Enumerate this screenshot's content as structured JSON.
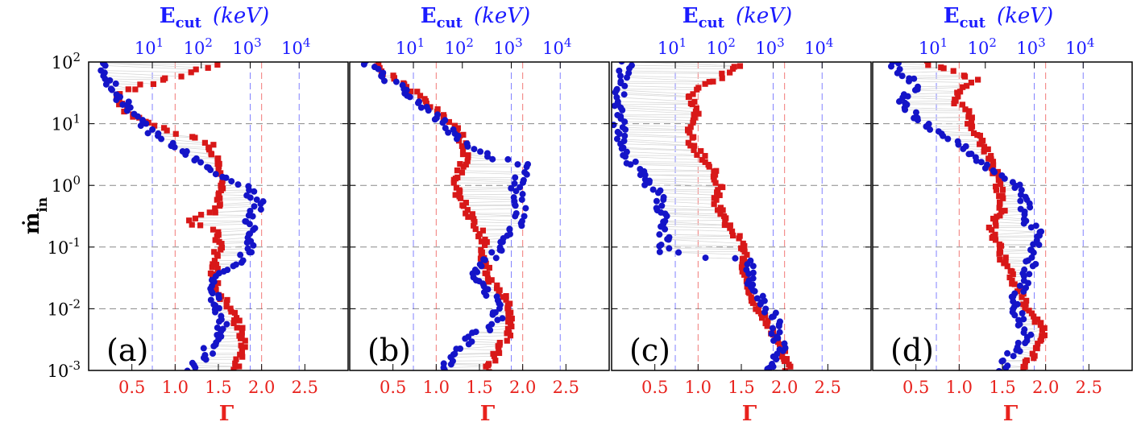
{
  "colors": {
    "gamma": "#d81818",
    "ecut": "#1414c8",
    "gamma_axis": "#e8221d",
    "ecut_axis": "#1a1aff",
    "grid_gray": "#888888",
    "connector": "#d8d8d8"
  },
  "labels": {
    "y_axis_main": "ṁ",
    "y_axis_sub": "in",
    "x_bottom": "Γ",
    "x_top_main": "E",
    "x_top_sub": "cut",
    "x_top_unit": "(keV)"
  },
  "chart_data": [
    {
      "type": "scatter",
      "panel_label": "(a)",
      "y_scale": "log",
      "ylim": [
        0.001,
        100
      ],
      "y_ticks": [
        {
          "exp": "-3"
        },
        {
          "exp": "-2"
        },
        {
          "exp": "-1"
        },
        {
          "exp": "0"
        },
        {
          "exp": "1"
        },
        {
          "exp": "2"
        }
      ],
      "x_bottom": {
        "label": "Γ",
        "xlim": [
          0.0,
          3.0
        ],
        "ticks": [
          "0.5",
          "1.0",
          "1.5",
          "2.0",
          "2.5"
        ],
        "gridlines": [
          1.0,
          2.0
        ]
      },
      "x_top": {
        "label": "Ecut (keV)",
        "scale": "log",
        "xlim": [
          0.5,
          100000
        ],
        "ticks": [
          {
            "exp": "1"
          },
          {
            "exp": "2"
          },
          {
            "exp": "3"
          },
          {
            "exp": "4"
          }
        ],
        "gridlines": [
          10,
          1000,
          10000
        ]
      },
      "grid_y": [
        0.01,
        0.1,
        1,
        10
      ],
      "series": [
        {
          "axis": "x_bottom",
          "marker": "square",
          "trend": [
            [
              1.7,
              0.001
            ],
            [
              1.75,
              0.0016
            ],
            [
              1.8,
              0.0025
            ],
            [
              1.75,
              0.004
            ],
            [
              1.7,
              0.007
            ],
            [
              1.6,
              0.012
            ],
            [
              1.5,
              0.02
            ],
            [
              1.45,
              0.035
            ],
            [
              1.45,
              0.06
            ],
            [
              1.5,
              0.1
            ],
            [
              1.5,
              0.18
            ],
            [
              1.1,
              0.25
            ],
            [
              1.45,
              0.35
            ],
            [
              1.5,
              0.6
            ],
            [
              1.55,
              1
            ],
            [
              1.5,
              1.7
            ],
            [
              1.45,
              3
            ],
            [
              1.4,
              5
            ],
            [
              1.0,
              7
            ],
            [
              0.7,
              10
            ],
            [
              0.45,
              15
            ],
            [
              0.3,
              30
            ],
            [
              1.0,
              60
            ],
            [
              1.5,
              90
            ]
          ]
        },
        {
          "axis": "x_top",
          "marker": "circle",
          "trend": [
            [
              60,
              0.001
            ],
            [
              100,
              0.0015
            ],
            [
              200,
              0.003
            ],
            [
              300,
              0.006
            ],
            [
              200,
              0.012
            ],
            [
              200,
              0.03
            ],
            [
              500,
              0.05
            ],
            [
              1000,
              0.1
            ],
            [
              1000,
              0.25
            ],
            [
              1500,
              0.5
            ],
            [
              800,
              1
            ],
            [
              250,
              1.5
            ],
            [
              80,
              2.5
            ],
            [
              20,
              5
            ],
            [
              6,
              10
            ],
            [
              3,
              20
            ],
            [
              1.5,
              40
            ],
            [
              1,
              70
            ],
            [
              1.2,
              100
            ]
          ]
        }
      ]
    },
    {
      "type": "scatter",
      "panel_label": "(b)",
      "y_scale": "log",
      "ylim": [
        0.001,
        100
      ],
      "x_bottom": {
        "label": "Γ",
        "xlim": [
          0.0,
          3.0
        ],
        "ticks": [
          "0.5",
          "1.0",
          "1.5",
          "2.0",
          "2.5"
        ],
        "gridlines": [
          1.0,
          2.0
        ]
      },
      "x_top": {
        "label": "Ecut (keV)",
        "scale": "log",
        "xlim": [
          0.5,
          100000
        ],
        "ticks": [
          {
            "exp": "1"
          },
          {
            "exp": "2"
          },
          {
            "exp": "3"
          },
          {
            "exp": "4"
          }
        ],
        "gridlines": [
          10,
          1000,
          10000
        ]
      },
      "grid_y": [
        0.01,
        0.1,
        1,
        10
      ],
      "series": [
        {
          "axis": "x_bottom",
          "marker": "square",
          "trend": [
            [
              1.6,
              0.001
            ],
            [
              1.7,
              0.002
            ],
            [
              1.85,
              0.004
            ],
            [
              1.85,
              0.008
            ],
            [
              1.8,
              0.015
            ],
            [
              1.6,
              0.03
            ],
            [
              1.55,
              0.07
            ],
            [
              1.55,
              0.12
            ],
            [
              1.5,
              0.2
            ],
            [
              1.35,
              0.4
            ],
            [
              1.2,
              1
            ],
            [
              1.3,
              2
            ],
            [
              1.35,
              4
            ],
            [
              1.25,
              8
            ],
            [
              1.05,
              15
            ],
            [
              0.8,
              30
            ],
            [
              0.4,
              70
            ],
            [
              0.3,
              100
            ]
          ]
        },
        {
          "axis": "x_top",
          "marker": "circle",
          "trend": [
            [
              40,
              0.001
            ],
            [
              80,
              0.002
            ],
            [
              200,
              0.004
            ],
            [
              500,
              0.006
            ],
            [
              600,
              0.01
            ],
            [
              300,
              0.02
            ],
            [
              150,
              0.03
            ],
            [
              300,
              0.06
            ],
            [
              1000,
              0.15
            ],
            [
              1500,
              0.3
            ],
            [
              1500,
              0.6
            ],
            [
              1200,
              1
            ],
            [
              2000,
              2
            ],
            [
              400,
              3
            ],
            [
              100,
              5
            ],
            [
              40,
              10
            ],
            [
              15,
              20
            ],
            [
              5,
              40
            ],
            [
              2,
              70
            ],
            [
              1,
              100
            ]
          ]
        }
      ]
    },
    {
      "type": "scatter",
      "panel_label": "(c)",
      "y_scale": "log",
      "ylim": [
        0.001,
        100
      ],
      "x_bottom": {
        "label": "Γ",
        "xlim": [
          0.0,
          3.0
        ],
        "ticks": [
          "0.5",
          "1.0",
          "1.5",
          "2.0",
          "2.5"
        ],
        "gridlines": [
          1.0,
          2.0
        ]
      },
      "x_top": {
        "label": "Ecut (keV)",
        "scale": "log",
        "xlim": [
          0.5,
          100000
        ],
        "ticks": [
          {
            "exp": "1"
          },
          {
            "exp": "2"
          },
          {
            "exp": "3"
          },
          {
            "exp": "4"
          }
        ],
        "gridlines": [
          10,
          1000,
          10000
        ]
      },
      "grid_y": [
        0.01,
        0.1,
        1,
        10
      ],
      "series": [
        {
          "axis": "x_bottom",
          "marker": "square",
          "trend": [
            [
              2.05,
              0.001
            ],
            [
              2.0,
              0.002
            ],
            [
              1.9,
              0.004
            ],
            [
              1.75,
              0.007
            ],
            [
              1.65,
              0.012
            ],
            [
              1.6,
              0.02
            ],
            [
              1.5,
              0.04
            ],
            [
              1.55,
              0.08
            ],
            [
              1.45,
              0.15
            ],
            [
              1.3,
              0.3
            ],
            [
              1.2,
              0.6
            ],
            [
              1.25,
              1
            ],
            [
              1.15,
              2
            ],
            [
              0.95,
              4
            ],
            [
              0.9,
              8
            ],
            [
              1.0,
              15
            ],
            [
              0.9,
              30
            ],
            [
              1.5,
              90
            ]
          ]
        },
        {
          "axis": "x_top",
          "marker": "circle",
          "trend": [
            [
              1000,
              0.001
            ],
            [
              1500,
              0.002
            ],
            [
              1200,
              0.004
            ],
            [
              1000,
              0.007
            ],
            [
              600,
              0.015
            ],
            [
              300,
              0.03
            ],
            [
              400,
              0.06
            ],
            [
              6,
              0.08
            ],
            [
              6,
              0.15
            ],
            [
              6,
              0.3
            ],
            [
              5,
              0.6
            ],
            [
              3,
              1
            ],
            [
              1.5,
              2
            ],
            [
              0.8,
              4
            ],
            [
              0.7,
              10
            ],
            [
              0.7,
              30
            ],
            [
              1,
              100
            ]
          ]
        }
      ]
    },
    {
      "type": "scatter",
      "panel_label": "(d)",
      "y_scale": "log",
      "ylim": [
        0.001,
        100
      ],
      "x_bottom": {
        "label": "Γ",
        "xlim": [
          0.0,
          3.0
        ],
        "ticks": [
          "0.5",
          "1.0",
          "1.5",
          "2.0",
          "2.5"
        ],
        "gridlines": [
          1.0,
          2.0
        ]
      },
      "x_top": {
        "label": "Ecut (keV)",
        "scale": "log",
        "xlim": [
          0.5,
          100000
        ],
        "ticks": [
          {
            "exp": "1"
          },
          {
            "exp": "2"
          },
          {
            "exp": "3"
          },
          {
            "exp": "4"
          }
        ],
        "gridlines": [
          10,
          1000,
          10000
        ]
      },
      "grid_y": [
        0.01,
        0.1,
        1,
        10
      ],
      "series": [
        {
          "axis": "x_bottom",
          "marker": "square",
          "trend": [
            [
              1.75,
              0.001
            ],
            [
              1.85,
              0.002
            ],
            [
              1.95,
              0.003
            ],
            [
              1.95,
              0.005
            ],
            [
              1.85,
              0.008
            ],
            [
              1.75,
              0.012
            ],
            [
              1.65,
              0.025
            ],
            [
              1.55,
              0.05
            ],
            [
              1.45,
              0.1
            ],
            [
              1.35,
              0.2
            ],
            [
              1.5,
              0.35
            ],
            [
              1.5,
              0.6
            ],
            [
              1.45,
              1
            ],
            [
              1.4,
              2
            ],
            [
              1.3,
              4
            ],
            [
              1.15,
              8
            ],
            [
              1.1,
              15
            ],
            [
              0.9,
              25
            ],
            [
              1.2,
              50
            ],
            [
              0.6,
              100
            ]
          ]
        },
        {
          "axis": "x_top",
          "marker": "circle",
          "trend": [
            [
              200,
              0.001
            ],
            [
              400,
              0.002
            ],
            [
              700,
              0.004
            ],
            [
              500,
              0.006
            ],
            [
              400,
              0.015
            ],
            [
              700,
              0.03
            ],
            [
              1000,
              0.08
            ],
            [
              1200,
              0.15
            ],
            [
              700,
              0.3
            ],
            [
              600,
              0.6
            ],
            [
              500,
              1
            ],
            [
              200,
              1.5
            ],
            [
              80,
              2.5
            ],
            [
              25,
              5
            ],
            [
              6,
              10
            ],
            [
              3,
              15
            ],
            [
              2,
              25
            ],
            [
              4,
              40
            ],
            [
              2,
              70
            ],
            [
              1.2,
              100
            ]
          ]
        }
      ]
    }
  ]
}
